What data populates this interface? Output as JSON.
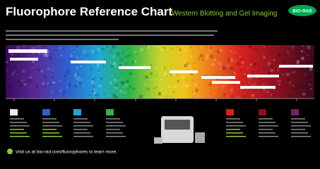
{
  "header": {
    "title": "Fluorophore Reference Chart",
    "subtitle": "Western Blotting and Gel Imaging",
    "logo": "BIO-RAD"
  },
  "footer": {
    "text": "Visit us at bio-rad.com/fluorophores to learn more."
  }
}
